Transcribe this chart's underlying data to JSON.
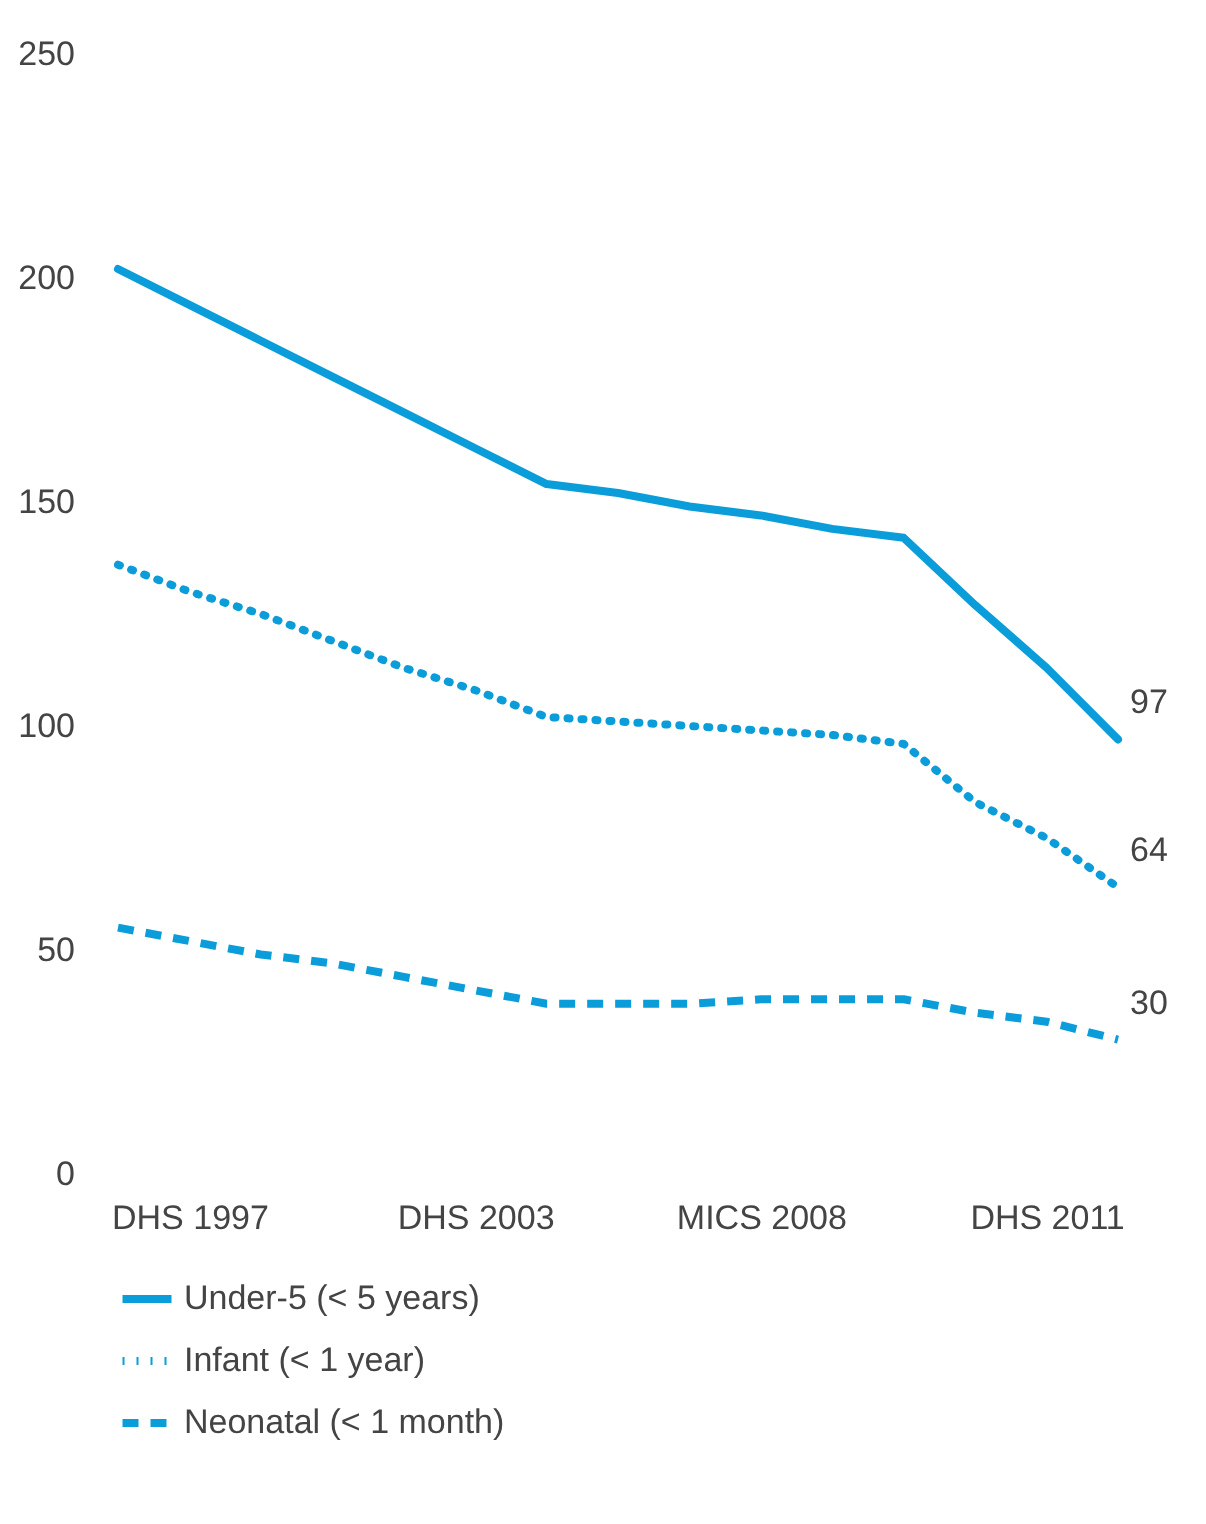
{
  "chart_data": {
    "type": "line",
    "ylim": [
      0,
      250
    ],
    "yticks": [
      0,
      50,
      100,
      150,
      200,
      250
    ],
    "categories": [
      null,
      "DHS 1997",
      null,
      null,
      null,
      "DHS 2003",
      null,
      null,
      null,
      "MICS 2008",
      null,
      null,
      null,
      "DHS 2011",
      null
    ],
    "grid": false,
    "legend": "bottom",
    "marker": "none",
    "series": [
      {
        "name": "Under-5 (< 5 years)",
        "color": "#0a9dd9",
        "line_style": "solid",
        "values": [
          202,
          194,
          186,
          178,
          170,
          162,
          154,
          152,
          149,
          147,
          144,
          142,
          127,
          113,
          97
        ],
        "value_labels": [
          null,
          null,
          null,
          null,
          null,
          null,
          null,
          null,
          null,
          null,
          null,
          null,
          null,
          null,
          "97"
        ]
      },
      {
        "name": "Infant (< 1 year)",
        "color": "#0a9dd9",
        "line_style": "dotted",
        "values": [
          136,
          130,
          125,
          119,
          113,
          108,
          102,
          101,
          100,
          99,
          98,
          96,
          83,
          75,
          64
        ],
        "value_labels": [
          null,
          null,
          null,
          null,
          null,
          null,
          null,
          null,
          null,
          null,
          null,
          null,
          null,
          null,
          "64"
        ]
      },
      {
        "name": "Neonatal (< 1 month)",
        "color": "#0a9dd9",
        "line_style": "dashed",
        "values": [
          55,
          52,
          49,
          47,
          44,
          41,
          38,
          38,
          38,
          39,
          39,
          39,
          36,
          34,
          30
        ],
        "value_labels": [
          null,
          null,
          null,
          null,
          null,
          null,
          null,
          null,
          null,
          null,
          null,
          null,
          null,
          null,
          "30"
        ]
      }
    ]
  }
}
